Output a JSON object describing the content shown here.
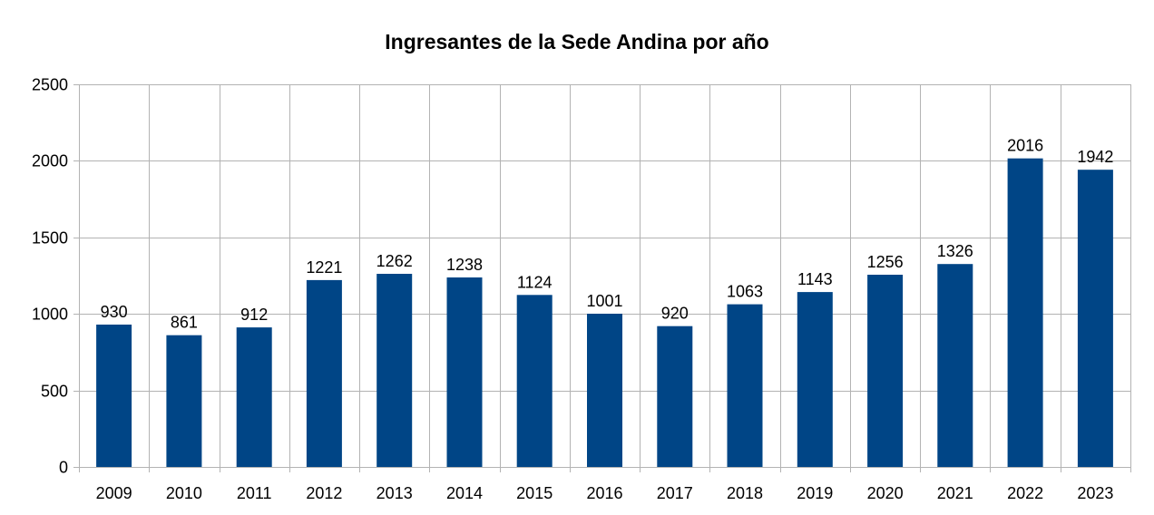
{
  "chart_data": {
    "type": "bar",
    "title": "Ingresantes de la Sede Andina por año",
    "xlabel": "",
    "ylabel": "",
    "categories": [
      "2009",
      "2010",
      "2011",
      "2012",
      "2013",
      "2014",
      "2015",
      "2016",
      "2017",
      "2018",
      "2019",
      "2020",
      "2021",
      "2022",
      "2023"
    ],
    "values": [
      930,
      861,
      912,
      1221,
      1262,
      1238,
      1124,
      1001,
      920,
      1063,
      1143,
      1256,
      1326,
      2016,
      1942
    ],
    "ylim": [
      0,
      2500
    ],
    "yticks": [
      0,
      500,
      1000,
      1500,
      2000,
      2500
    ],
    "grid": true,
    "legend": "none",
    "data_labels": true,
    "colors": {
      "bar": "#004586",
      "grid": "#b3b3b3"
    }
  }
}
